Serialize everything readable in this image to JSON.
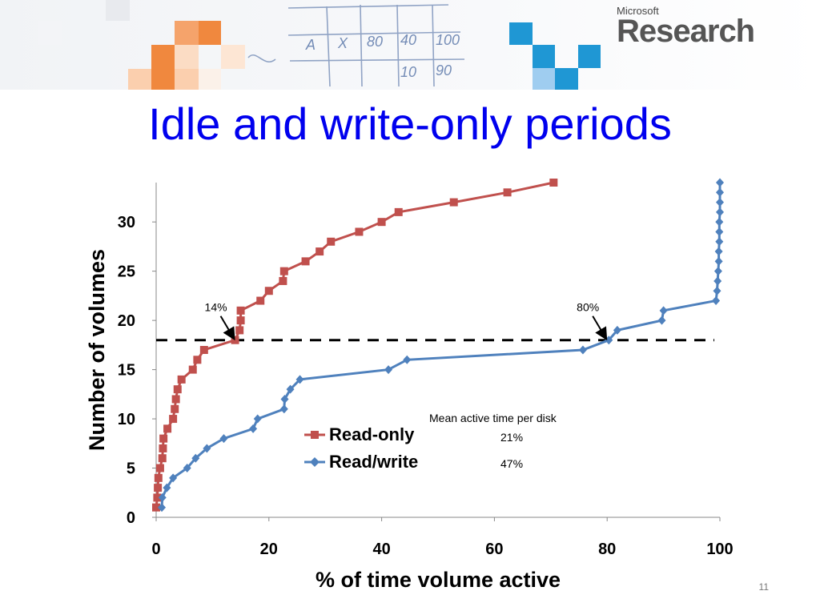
{
  "header": {
    "logo_top": "Microsoft",
    "logo_bottom": "Research",
    "sketch_text": [
      "A",
      "X",
      "80",
      "40",
      "100",
      "10",
      "90"
    ]
  },
  "slide": {
    "title": "Idle and write-only periods",
    "number": "11"
  },
  "colors": {
    "title": "#0000ee",
    "read_only": "#c0504d",
    "read_write": "#4f81bd",
    "orange_accent": "#f0883e",
    "blue_accent": "#1f97d4"
  },
  "chart_data": {
    "type": "line",
    "xlabel": "% of time volume active",
    "ylabel": "Number of volumes",
    "xlim": [
      0,
      100
    ],
    "ylim": [
      0,
      34
    ],
    "x_ticks": [
      "0",
      "20",
      "40",
      "60",
      "80",
      "100"
    ],
    "y_ticks": [
      "0",
      "5",
      "10",
      "15",
      "20",
      "25",
      "30"
    ],
    "grid": false,
    "legend_position": "center",
    "legend_header": "Mean active time per disk",
    "reference_line": {
      "y": 18,
      "style": "dashed"
    },
    "annotations": [
      {
        "text": "14%",
        "target": [
          14,
          18
        ]
      },
      {
        "text": "80%",
        "target": [
          80,
          18
        ]
      }
    ],
    "series": [
      {
        "name": "Read-only",
        "mean": "21%",
        "marker": "square",
        "points": [
          [
            0,
            1
          ],
          [
            0.2,
            2
          ],
          [
            0.3,
            3
          ],
          [
            0.4,
            4
          ],
          [
            0.7,
            5
          ],
          [
            1.1,
            6
          ],
          [
            1.2,
            7
          ],
          [
            1.3,
            8
          ],
          [
            2,
            9
          ],
          [
            3,
            10
          ],
          [
            3.3,
            11
          ],
          [
            3.5,
            12
          ],
          [
            3.8,
            13
          ],
          [
            4.5,
            14
          ],
          [
            6.5,
            15
          ],
          [
            7.3,
            16
          ],
          [
            8.5,
            17
          ],
          [
            14,
            18
          ],
          [
            14.8,
            19
          ],
          [
            15,
            20
          ],
          [
            15,
            21
          ],
          [
            18.5,
            22
          ],
          [
            20,
            23
          ],
          [
            22.5,
            24
          ],
          [
            22.7,
            25
          ],
          [
            26.5,
            26
          ],
          [
            29,
            27
          ],
          [
            31,
            28
          ],
          [
            36,
            29
          ],
          [
            40,
            30
          ],
          [
            43,
            31
          ],
          [
            52.8,
            32
          ],
          [
            62.3,
            33
          ],
          [
            70.5,
            34
          ]
        ]
      },
      {
        "name": "Read/write",
        "mean": "47%",
        "marker": "diamond",
        "points": [
          [
            1,
            1
          ],
          [
            1.1,
            2
          ],
          [
            1.9,
            3
          ],
          [
            3,
            4
          ],
          [
            5.5,
            5
          ],
          [
            7,
            6
          ],
          [
            9,
            7
          ],
          [
            12,
            8
          ],
          [
            17.2,
            9
          ],
          [
            18,
            10
          ],
          [
            22.7,
            11
          ],
          [
            22.8,
            12
          ],
          [
            23.8,
            13
          ],
          [
            25.5,
            14
          ],
          [
            41.2,
            15
          ],
          [
            44.5,
            16
          ],
          [
            75.7,
            17
          ],
          [
            80.3,
            18
          ],
          [
            81.8,
            19
          ],
          [
            89.7,
            20
          ],
          [
            90,
            21
          ],
          [
            99.3,
            22
          ],
          [
            99.5,
            23
          ],
          [
            99.6,
            24
          ],
          [
            99.7,
            25
          ],
          [
            99.8,
            26
          ],
          [
            99.8,
            27
          ],
          [
            99.9,
            28
          ],
          [
            99.9,
            29
          ],
          [
            99.9,
            30
          ],
          [
            100,
            31
          ],
          [
            100,
            32
          ],
          [
            100,
            33
          ],
          [
            100,
            34
          ]
        ]
      }
    ]
  }
}
